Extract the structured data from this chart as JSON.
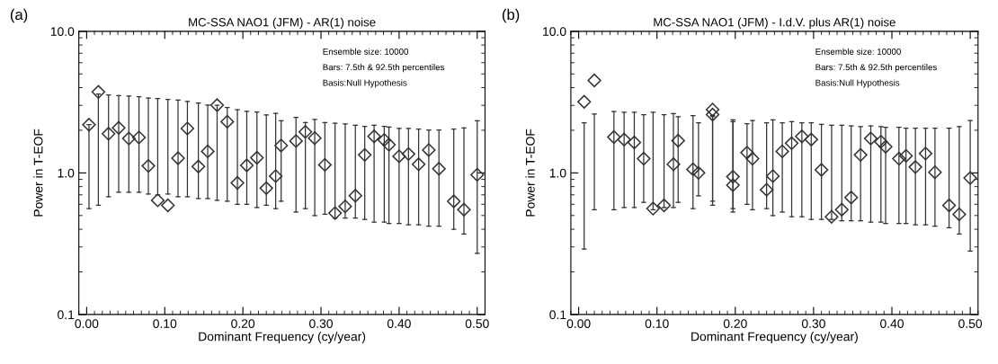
{
  "chart_data": [
    {
      "type": "scatter",
      "title": "MC-SSA NAO1 (JFM) - AR(1) noise",
      "xlabel": "Dominant Frequency (cy/year)",
      "ylabel": "Power in T-EOF",
      "annotations": [
        "(a)",
        "Ensemble size: 10000",
        "Bars: 7.5th & 92.5th percentiles",
        "Basis:Null Hypothesis"
      ],
      "marker": "diamond",
      "log": "y",
      "grid": false,
      "legend": false,
      "xlim": [
        -0.01,
        0.51
      ],
      "xticks": [
        {
          "value": 0,
          "label": "0.00"
        },
        {
          "value": 0.1,
          "label": "0.10"
        },
        {
          "value": 0.2,
          "label": "0.20"
        },
        {
          "value": 0.3,
          "label": "0.30"
        },
        {
          "value": 0.4,
          "label": "0.40"
        },
        {
          "value": 0.5,
          "label": "0.50"
        }
      ],
      "ylim": [
        0.1,
        10
      ],
      "yticks": [
        {
          "value": 0.1,
          "label": "0.1"
        },
        {
          "value": 1,
          "label": "1.0"
        },
        {
          "value": 10,
          "label": "10.0"
        }
      ],
      "series": [
        {
          "color": "#333333",
          "x": [
            0.003,
            0.015,
            0.028,
            0.041,
            0.054,
            0.067,
            0.079,
            0.091,
            0.104,
            0.117,
            0.129,
            0.143,
            0.155,
            0.167,
            0.18,
            0.193,
            0.205,
            0.218,
            0.23,
            0.242,
            0.249,
            0.268,
            0.28,
            0.292,
            0.305,
            0.318,
            0.331,
            0.344,
            0.356,
            0.368,
            0.381,
            0.387,
            0.4,
            0.412,
            0.425,
            0.438,
            0.451,
            0.47,
            0.483,
            0.5
          ],
          "values": [
            2.19,
            3.73,
            1.89,
            2.08,
            1.75,
            1.78,
            1.12,
            0.64,
            0.59,
            1.27,
            2.06,
            1.11,
            1.42,
            3.01,
            2.3,
            0.85,
            1.13,
            1.28,
            0.78,
            0.95,
            1.56,
            1.68,
            1.95,
            1.76,
            1.14,
            0.52,
            0.58,
            0.69,
            1.34,
            1.81,
            1.71,
            1.58,
            1.31,
            1.36,
            1.15,
            1.45,
            1.07,
            0.63,
            0.55,
            0.97
          ],
          "errors": [
            [
              0.56,
              2.19
            ],
            [
              0.59,
              3.6
            ],
            [
              0.68,
              3.55
            ],
            [
              0.73,
              3.52
            ],
            [
              0.73,
              3.49
            ],
            [
              0.73,
              3.45
            ],
            [
              0.71,
              3.38
            ],
            [
              0.7,
              3.35
            ],
            [
              0.71,
              3.3
            ],
            [
              0.68,
              3.27
            ],
            [
              0.68,
              3.2
            ],
            [
              0.66,
              3.11
            ],
            [
              0.66,
              3.01
            ],
            [
              0.64,
              3.0
            ],
            [
              0.63,
              2.9
            ],
            [
              0.6,
              2.79
            ],
            [
              0.6,
              2.72
            ],
            [
              0.57,
              2.69
            ],
            [
              0.59,
              2.57
            ],
            [
              0.56,
              2.63
            ],
            [
              0.63,
              2.33
            ],
            [
              0.53,
              2.47
            ],
            [
              0.56,
              2.27
            ],
            [
              0.5,
              2.39
            ],
            [
              0.51,
              2.27
            ],
            [
              0.48,
              2.24
            ],
            [
              0.48,
              2.22
            ],
            [
              0.48,
              2.17
            ],
            [
              0.47,
              2.13
            ],
            [
              0.45,
              2.17
            ],
            [
              0.45,
              2.13
            ],
            [
              0.44,
              2.11
            ],
            [
              0.44,
              2.06
            ],
            [
              0.43,
              2.06
            ],
            [
              0.43,
              2.04
            ],
            [
              0.42,
              2.01
            ],
            [
              0.42,
              2.01
            ],
            [
              0.4,
              2.04
            ],
            [
              0.37,
              2.08
            ],
            [
              0.27,
              2.33
            ]
          ]
        }
      ]
    },
    {
      "type": "scatter",
      "title": "MC-SSA NAO1 (JFM) - I.d.V. plus AR(1) noise",
      "xlabel": "Dominant Frequency (cy/year)",
      "ylabel": "Power in T-EOF",
      "annotations": [
        "(b)",
        "Ensemble size: 10000",
        "Bars: 7.5th & 92.5th percentiles",
        "Basis:Null Hypothesis"
      ],
      "marker": "diamond",
      "log": "y",
      "grid": false,
      "legend": false,
      "xlim": [
        -0.01,
        0.51
      ],
      "xticks": [
        {
          "value": 0,
          "label": "0.00"
        },
        {
          "value": 0.1,
          "label": "0.10"
        },
        {
          "value": 0.2,
          "label": "0.20"
        },
        {
          "value": 0.3,
          "label": "0.30"
        },
        {
          "value": 0.4,
          "label": "0.40"
        },
        {
          "value": 0.5,
          "label": "0.50"
        }
      ],
      "ylim": [
        0.1,
        10
      ],
      "yticks": [
        {
          "value": 0.1,
          "label": "0.1"
        },
        {
          "value": 1,
          "label": "1.0"
        },
        {
          "value": 10,
          "label": "10.0"
        }
      ],
      "series": [
        {
          "color": "#333333",
          "x": [
            0.007,
            0.02,
            0.045,
            0.058,
            0.071,
            0.083,
            0.095,
            0.109,
            0.121,
            0.127,
            0.146,
            0.153,
            0.171,
            0.171,
            0.197,
            0.197,
            0.215,
            0.222,
            0.24,
            0.248,
            0.26,
            0.272,
            0.285,
            0.297,
            0.31,
            0.323,
            0.336,
            0.348,
            0.36,
            0.373,
            0.386,
            0.392,
            0.409,
            0.418,
            0.43,
            0.443,
            0.455,
            0.473,
            0.486,
            0.5
          ],
          "values": [
            3.18,
            4.5,
            1.79,
            1.72,
            1.64,
            1.26,
            0.56,
            0.59,
            1.15,
            1.69,
            1.06,
            1.0,
            2.8,
            2.58,
            0.94,
            0.82,
            1.39,
            1.26,
            0.76,
            0.95,
            1.42,
            1.62,
            1.81,
            1.72,
            1.05,
            0.49,
            0.55,
            0.67,
            1.34,
            1.75,
            1.66,
            1.53,
            1.26,
            1.32,
            1.1,
            1.37,
            1.01,
            0.59,
            0.51,
            0.92
          ],
          "errors": [
            [
              0.29,
              2.26
            ],
            [
              0.55,
              2.6
            ],
            [
              0.55,
              2.71
            ],
            [
              0.57,
              2.68
            ],
            [
              0.57,
              2.68
            ],
            [
              0.62,
              2.58
            ],
            [
              0.55,
              2.68
            ],
            [
              0.57,
              2.58
            ],
            [
              0.57,
              2.62
            ],
            [
              0.62,
              2.49
            ],
            [
              0.56,
              2.54
            ],
            [
              0.69,
              2.26
            ],
            [
              0.59,
              2.55
            ],
            [
              0.63,
              2.5
            ],
            [
              0.53,
              2.37
            ],
            [
              0.56,
              2.3
            ],
            [
              0.6,
              2.23
            ],
            [
              0.55,
              2.34
            ],
            [
              0.56,
              2.26
            ],
            [
              0.5,
              2.37
            ],
            [
              0.53,
              2.26
            ],
            [
              0.49,
              2.3
            ],
            [
              0.49,
              2.26
            ],
            [
              0.47,
              2.26
            ],
            [
              0.47,
              2.2
            ],
            [
              0.47,
              2.17
            ],
            [
              0.46,
              2.17
            ],
            [
              0.46,
              2.15
            ],
            [
              0.46,
              2.12
            ],
            [
              0.45,
              2.15
            ],
            [
              0.45,
              2.12
            ],
            [
              0.44,
              2.1
            ],
            [
              0.44,
              2.1
            ],
            [
              0.44,
              2.07
            ],
            [
              0.43,
              2.07
            ],
            [
              0.43,
              2.07
            ],
            [
              0.42,
              2.07
            ],
            [
              0.41,
              2.07
            ],
            [
              0.37,
              2.12
            ],
            [
              0.28,
              2.34
            ]
          ]
        }
      ]
    }
  ]
}
